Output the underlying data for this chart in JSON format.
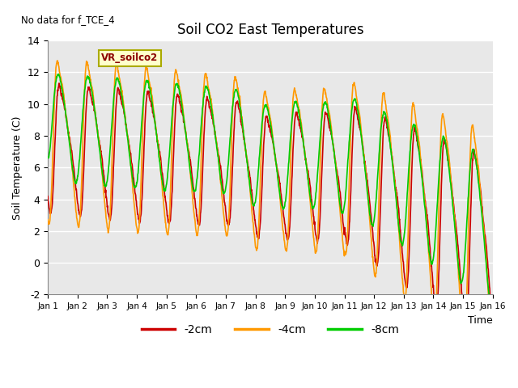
{
  "title": "Soil CO2 East Temperatures",
  "xlabel": "Time",
  "ylabel": "Soil Temperature (C)",
  "annotation": "No data for f_TCE_4",
  "legend_label": "VR_soilco2",
  "ylim": [
    -2,
    14
  ],
  "xlim": [
    0,
    15
  ],
  "xtick_labels": [
    "Jan 1",
    "Jan 2",
    "Jan 3",
    "Jan 4",
    "Jan 5",
    "Jan 6",
    "Jan 7",
    "Jan 8",
    "Jan 9",
    "Jan 10",
    "Jan 11",
    "Jan 12",
    "Jan 13",
    "Jan 14",
    "Jan 15",
    "Jan 16"
  ],
  "ytick_values": [
    -2,
    0,
    2,
    4,
    6,
    8,
    10,
    12,
    14
  ],
  "color_2cm": "#cc0000",
  "color_4cm": "#ff9900",
  "color_8cm": "#00cc00",
  "bg_color": "#e8e8e8",
  "legend_items": [
    "-2cm",
    "-4cm",
    "-8cm"
  ],
  "n_points": 1500
}
